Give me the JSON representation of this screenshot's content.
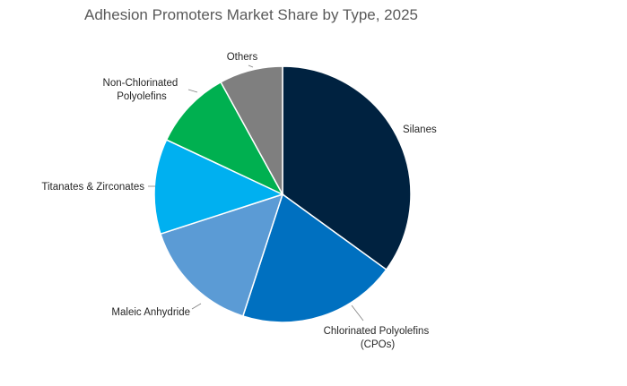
{
  "chart_data": {
    "type": "pie",
    "title": "Adhesion Promoters Market Share by Type, 2025",
    "start_angle_deg": 0,
    "direction": "clockwise",
    "slices": [
      {
        "label": "Silanes",
        "value": 35,
        "color": "#002240"
      },
      {
        "label": "Chlorinated Polyolefins (CPOs)",
        "value": 20,
        "color": "#0070C0"
      },
      {
        "label": "Maleic Anhydride",
        "value": 15,
        "color": "#5B9BD5"
      },
      {
        "label": "Titanates & Zirconates",
        "value": 12,
        "color": "#00B0F0"
      },
      {
        "label": "Non-Chlorinated Polyolefins",
        "value": 10,
        "color": "#00B050"
      },
      {
        "label": "Others",
        "value": 8,
        "color": "#7F7F7F"
      }
    ]
  }
}
